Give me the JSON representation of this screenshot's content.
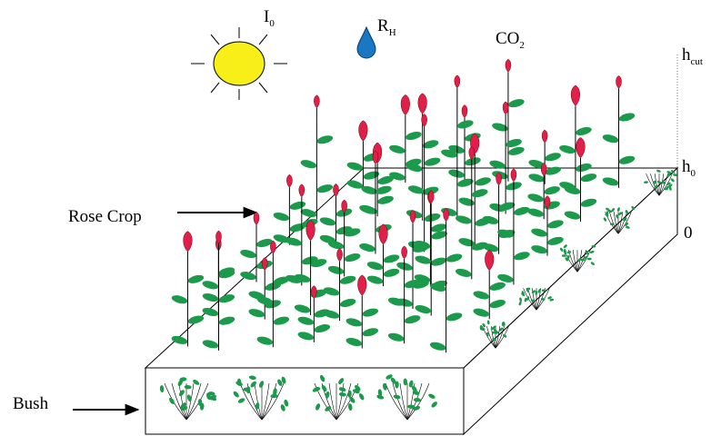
{
  "labels": {
    "light": {
      "base": "I",
      "sub": "0"
    },
    "humidity": {
      "base": "R",
      "sub": "H"
    },
    "co2": {
      "base": "CO",
      "sub": "2"
    },
    "h_cut": {
      "base": "h",
      "sub": "cut"
    },
    "h_0": {
      "base": "h",
      "sub": "0"
    },
    "zero": "0",
    "rose_crop": "Rose Crop",
    "bush": "Bush"
  }
}
